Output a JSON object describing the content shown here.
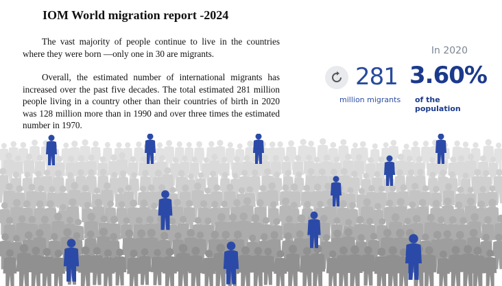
{
  "report": {
    "title": "IOM World migration report -2024",
    "paragraph1": "The vast majority of people continue to live in the countries where they were born —only one in 30 are migrants.",
    "paragraph2": "Overall, the estimated number of international migrants has increased over the past five decades. The total estimated 281 million people living in a country other than their countries of birth in 2020 was 128 million more than in 1990 and over three times the estimated number in 1970."
  },
  "stats": {
    "year_label": "In 2020",
    "migrants_number": "281",
    "migrants_label": "million migrants",
    "percent_value": "3.60%",
    "percent_label": "of the population",
    "icon": "reload-icon"
  },
  "colors": {
    "accent_blue": "#2b4aa8",
    "dark_blue": "#1b3a8c",
    "crowd_gray": "#9a9a9a"
  }
}
